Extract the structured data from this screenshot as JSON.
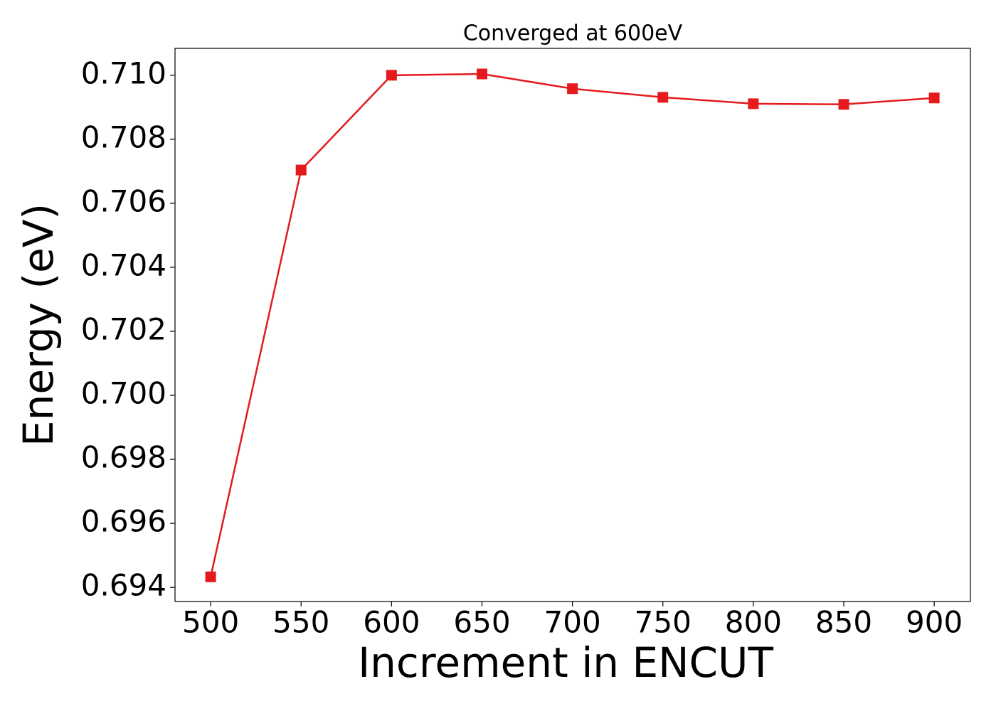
{
  "chart_data": {
    "type": "line",
    "title": "Converged at 600eV",
    "x_label": "Increment in ENCUT",
    "y_label": "Energy (eV)",
    "x": [
      500,
      550,
      600,
      650,
      700,
      750,
      800,
      850,
      900
    ],
    "series": [
      {
        "color": "#e41a1c",
        "values": [
          0.69433,
          0.70704,
          0.71,
          0.71004,
          0.70958,
          0.70931,
          0.70911,
          0.70909,
          0.70929
        ]
      }
    ],
    "xlim": [
      480.3,
      920
    ],
    "ylim": [
      0.69356,
      0.71084
    ],
    "xticks": [
      500,
      550,
      600,
      650,
      700,
      750,
      800,
      850,
      900
    ],
    "yticks": [
      0.694,
      0.696,
      0.698,
      {
        "value": 0.7,
        "label": "0.700"
      },
      0.702,
      0.704,
      0.706,
      0.708,
      {
        "value": 0.71,
        "label": "0.710"
      }
    ]
  }
}
